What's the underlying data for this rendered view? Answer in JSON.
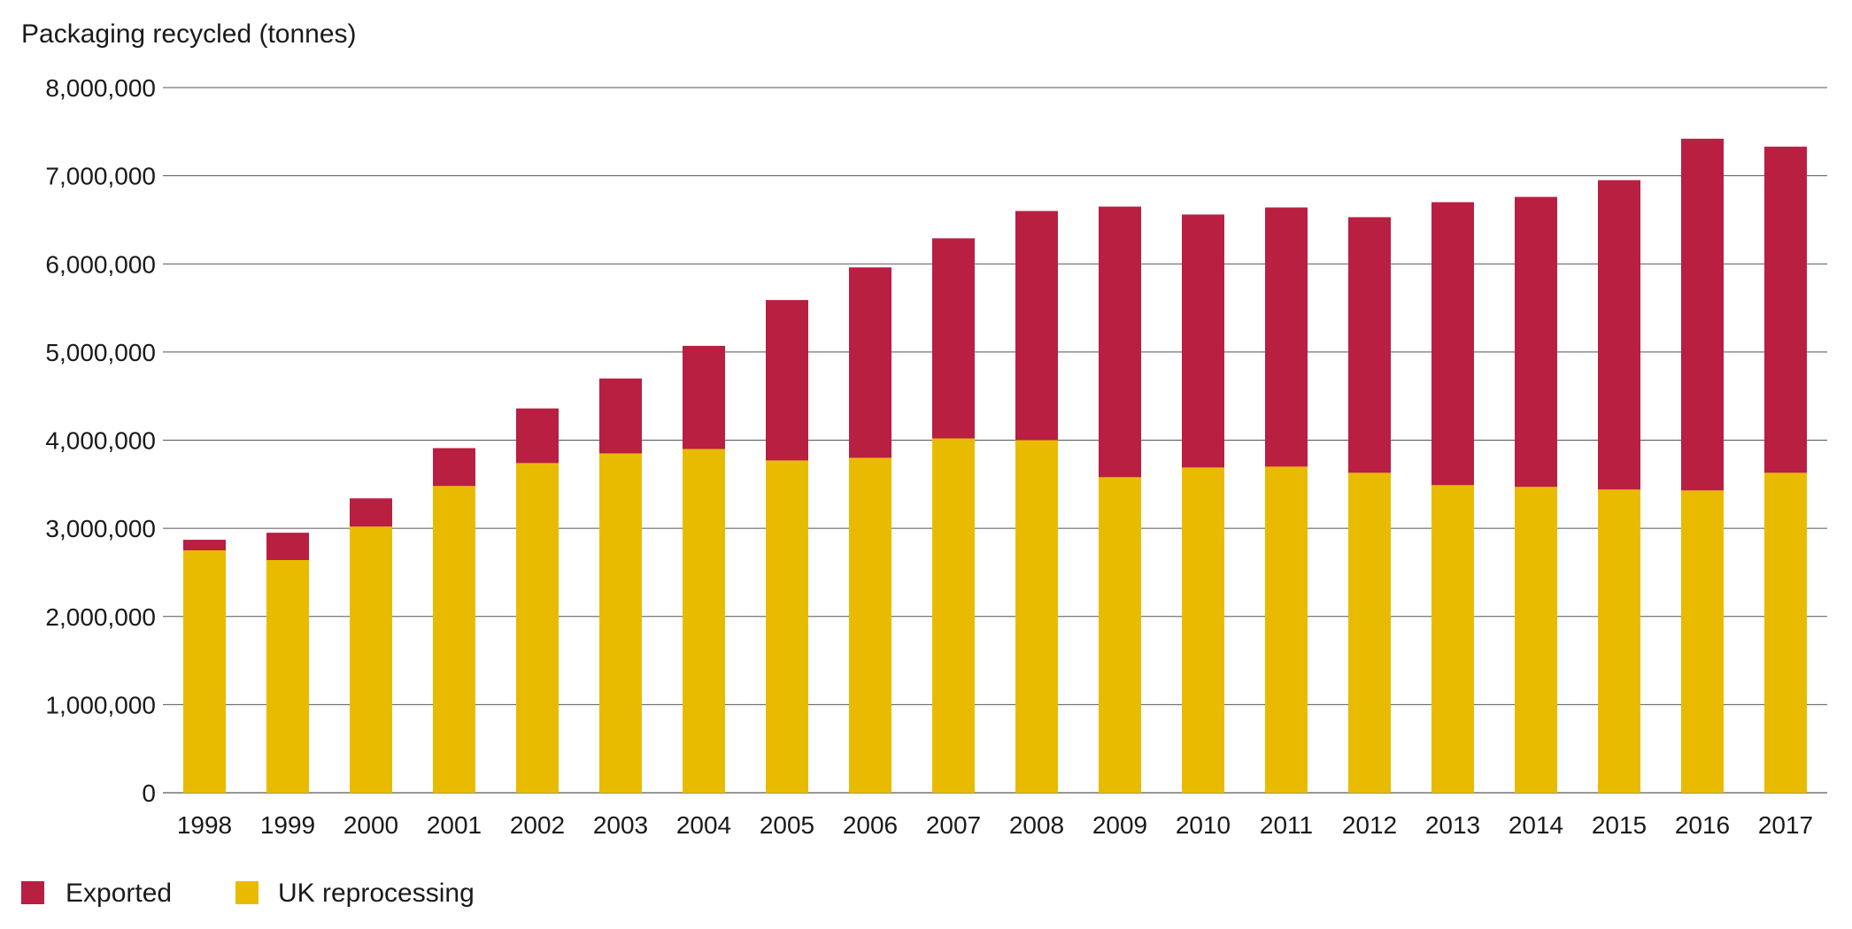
{
  "chart_data": {
    "type": "bar",
    "stacked": true,
    "ylabel": "Packaging recycled (tonnes)",
    "xlabel": "",
    "ylim": [
      0,
      8000000
    ],
    "yticks": [
      0,
      1000000,
      2000000,
      3000000,
      4000000,
      5000000,
      6000000,
      7000000,
      8000000
    ],
    "ytick_labels": [
      "0",
      "1,000,000",
      "2,000,000",
      "3,000,000",
      "4,000,000",
      "5,000,000",
      "6,000,000",
      "7,000,000",
      "8,000,000"
    ],
    "grid": "horizontal",
    "legend_position": "bottom-left",
    "categories": [
      "1998",
      "1999",
      "2000",
      "2001",
      "2002",
      "2003",
      "2004",
      "2005",
      "2006",
      "2007",
      "2008",
      "2009",
      "2010",
      "2011",
      "2012",
      "2013",
      "2014",
      "2015",
      "2016",
      "2017"
    ],
    "series": [
      {
        "name": "UK reprocessing",
        "color": "#E9BB00",
        "values": [
          2750000,
          2640000,
          3020000,
          3480000,
          3740000,
          3850000,
          3900000,
          3770000,
          3800000,
          4020000,
          4000000,
          3580000,
          3690000,
          3700000,
          3630000,
          3490000,
          3470000,
          3440000,
          3430000,
          3630000
        ]
      },
      {
        "name": "Exported",
        "color": "#B81F41",
        "values": [
          120000,
          310000,
          320000,
          430000,
          620000,
          850000,
          1170000,
          1820000,
          2160000,
          2270000,
          2600000,
          3070000,
          2870000,
          2940000,
          2900000,
          3210000,
          3290000,
          3510000,
          3990000,
          3700000
        ]
      }
    ]
  },
  "legend": [
    {
      "label": "Exported",
      "color": "#B81F41"
    },
    {
      "label": "UK reprocessing",
      "color": "#E9BB00"
    }
  ]
}
